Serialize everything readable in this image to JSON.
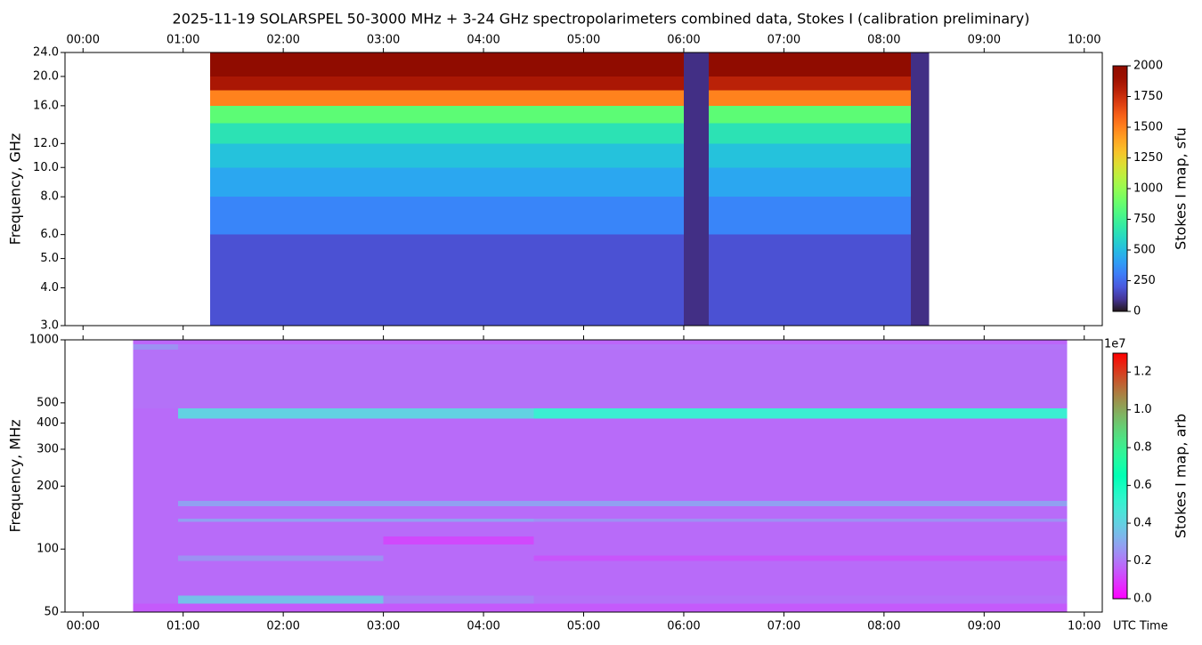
{
  "title": "2025-11-19  SOLARSPEL  50-3000 MHz  +  3-24 GHz  spectropolarimeters combined data,  Stokes I  (calibration preliminary)",
  "chart_data": [
    {
      "type": "heatmap",
      "ylabel": "Frequency, GHz",
      "log_y": true,
      "xaxis_side": "top",
      "xlim": [
        -0.18,
        10.18
      ],
      "xticks": [
        {
          "value": 0,
          "label": "00:00"
        },
        {
          "value": 1,
          "label": "01:00"
        },
        {
          "value": 2,
          "label": "02:00"
        },
        {
          "value": 3,
          "label": "03:00"
        },
        {
          "value": 4,
          "label": "04:00"
        },
        {
          "value": 5,
          "label": "05:00"
        },
        {
          "value": 6,
          "label": "06:00"
        },
        {
          "value": 7,
          "label": "07:00"
        },
        {
          "value": 8,
          "label": "08:00"
        },
        {
          "value": 9,
          "label": "09:00"
        },
        {
          "value": 10,
          "label": "10:00"
        }
      ],
      "ylim": [
        3,
        24
      ],
      "yticks": [
        {
          "value": 3,
          "label": "3.0"
        },
        {
          "value": 4,
          "label": "4.0"
        },
        {
          "value": 5,
          "label": "5.0"
        },
        {
          "value": 6,
          "label": "6.0"
        },
        {
          "value": 8,
          "label": "8.0"
        },
        {
          "value": 10,
          "label": "10.0"
        },
        {
          "value": 12,
          "label": "12.0"
        },
        {
          "value": 16,
          "label": "16.0"
        },
        {
          "value": 20,
          "label": "20.0"
        },
        {
          "value": 24,
          "label": "24.0"
        }
      ],
      "x_edges": [
        1.27,
        6.0,
        6.25,
        8.27,
        8.45
      ],
      "y_edges": [
        3,
        6,
        8,
        10,
        12,
        14,
        16,
        18,
        20,
        24
      ],
      "values": [
        [
          180,
          80,
          180,
          80
        ],
        [
          330,
          80,
          330,
          80
        ],
        [
          430,
          80,
          430,
          80
        ],
        [
          520,
          80,
          520,
          80
        ],
        [
          650,
          80,
          650,
          80
        ],
        [
          850,
          80,
          850,
          80
        ],
        [
          1500,
          80,
          1500,
          80
        ],
        [
          1850,
          80,
          1800,
          80
        ],
        [
          2000,
          80,
          2000,
          80
        ]
      ],
      "colormap": "turbo",
      "clim": [
        0,
        2000
      ],
      "colorbar_label": "Stokes I map, sfu",
      "cticks": [
        0,
        250,
        500,
        750,
        1000,
        1250,
        1500,
        1750,
        2000
      ]
    },
    {
      "type": "heatmap",
      "ylabel": "Frequency, MHz",
      "log_y": true,
      "xaxis_side": "bottom",
      "xlabel": "UTC Time",
      "xlim": [
        -0.18,
        10.18
      ],
      "xticks": [
        {
          "value": 0,
          "label": "00:00"
        },
        {
          "value": 1,
          "label": "01:00"
        },
        {
          "value": 2,
          "label": "02:00"
        },
        {
          "value": 3,
          "label": "03:00"
        },
        {
          "value": 4,
          "label": "04:00"
        },
        {
          "value": 5,
          "label": "05:00"
        },
        {
          "value": 6,
          "label": "06:00"
        },
        {
          "value": 7,
          "label": "07:00"
        },
        {
          "value": 8,
          "label": "08:00"
        },
        {
          "value": 9,
          "label": "09:00"
        },
        {
          "value": 10,
          "label": "10:00"
        }
      ],
      "ylim": [
        50,
        1000
      ],
      "yticks": [
        50,
        100,
        200,
        300,
        400,
        500,
        1000
      ],
      "x_edges": [
        0.5,
        0.95,
        3.0,
        4.5,
        9.83
      ],
      "y_edges": [
        50,
        55,
        60,
        88,
        93,
        105,
        115,
        135,
        140,
        160,
        170,
        420,
        470,
        900,
        950,
        1000
      ],
      "values": [
        [
          1500000,
          1500000,
          1500000,
          1500000
        ],
        [
          1800000,
          3500000,
          2200000,
          1900000
        ],
        [
          1800000,
          1800000,
          1800000,
          1800000
        ],
        [
          1800000,
          2500000,
          1800000,
          1400000
        ],
        [
          1800000,
          1800000,
          1800000,
          1800000
        ],
        [
          1800000,
          1800000,
          1200000,
          1800000
        ],
        [
          1800000,
          1800000,
          1800000,
          1800000
        ],
        [
          1800000,
          2800000,
          2800000,
          2500000
        ],
        [
          1800000,
          1800000,
          1800000,
          1800000
        ],
        [
          1800000,
          2800000,
          2800000,
          2800000
        ],
        [
          1800000,
          1800000,
          1800000,
          1800000
        ],
        [
          1800000,
          4000000,
          4000000,
          5000000
        ],
        [
          1900000,
          1900000,
          1900000,
          1900000
        ],
        [
          2500000,
          2000000,
          2000000,
          2000000
        ],
        [
          1700000,
          1700000,
          1700000,
          1700000
        ]
      ],
      "colormap": "rainbow",
      "clim": [
        0,
        13000000
      ],
      "colorbar_label": "Stokes I map, arb",
      "colorbar_offset": "1e7",
      "cticks": [
        {
          "value": 0,
          "label": "0.0"
        },
        {
          "value": 2000000,
          "label": "0.2"
        },
        {
          "value": 4000000,
          "label": "0.4"
        },
        {
          "value": 6000000,
          "label": "0.6"
        },
        {
          "value": 8000000,
          "label": "0.8"
        },
        {
          "value": 10000000,
          "label": "1.0"
        },
        {
          "value": 12000000,
          "label": "1.2"
        }
      ]
    }
  ]
}
